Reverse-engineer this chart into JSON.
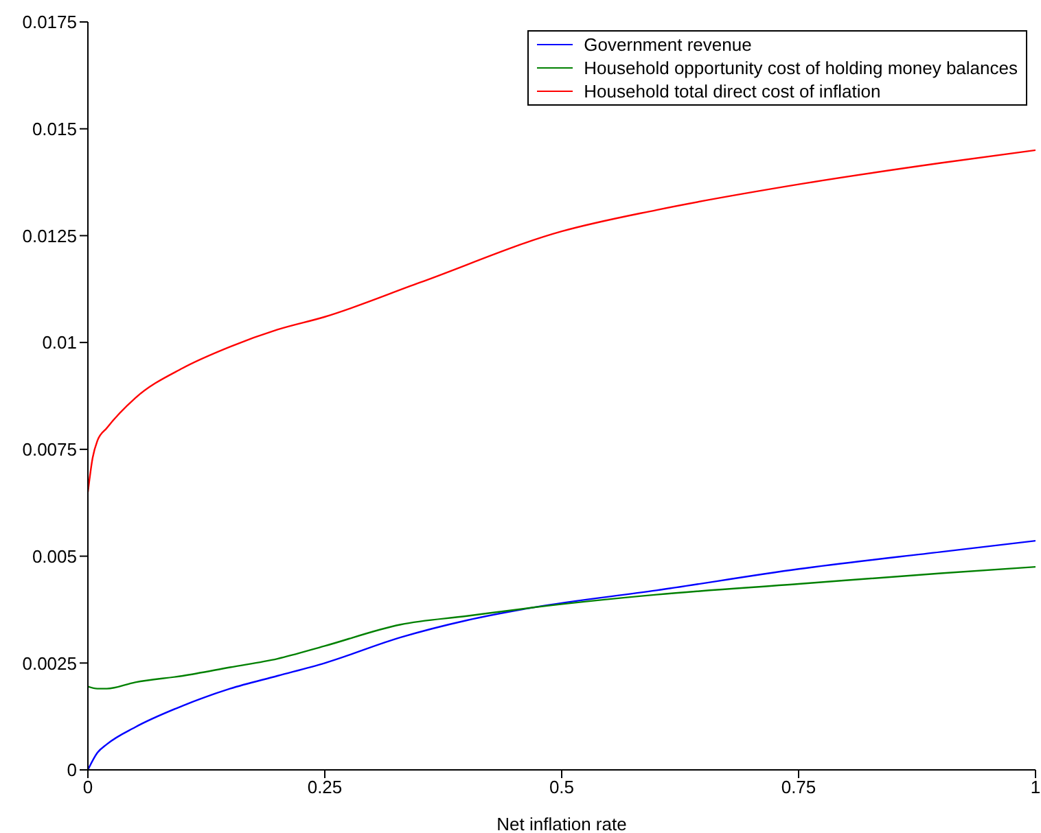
{
  "chart_data": {
    "type": "line",
    "xlabel": "Net inflation rate",
    "xlim": [
      0,
      1
    ],
    "xticks": [
      0,
      0.25,
      0.5,
      0.75,
      1
    ],
    "ylim": [
      0,
      0.0175
    ],
    "yticks": [
      0,
      0.0025,
      0.005,
      0.0075,
      0.01,
      0.0125,
      0.015,
      0.0175
    ],
    "grid": false,
    "legend": "top right",
    "marker": "none",
    "line_style": "solid",
    "series": [
      {
        "name": "Government revenue",
        "color": "#0000ff",
        "x": [
          0,
          0.01,
          0.02,
          0.05,
          0.1,
          0.15,
          0.2,
          0.25,
          0.33,
          0.4,
          0.47,
          0.6,
          0.75,
          0.9,
          1
        ],
        "values": [
          0,
          0.0004,
          0.0006,
          0.001,
          0.0015,
          0.0019,
          0.0022,
          0.0025,
          0.0031,
          0.0035,
          0.0038,
          0.0042,
          0.0047,
          0.0051,
          0.00536
        ]
      },
      {
        "name": "Household opportunity cost of holding money balances",
        "color": "#008000",
        "x": [
          0,
          0.01,
          0.02,
          0.05,
          0.1,
          0.15,
          0.2,
          0.25,
          0.33,
          0.4,
          0.47,
          0.6,
          0.75,
          0.9,
          1
        ],
        "values": [
          0.00195,
          0.0019,
          0.0019,
          0.00205,
          0.0022,
          0.0024,
          0.0026,
          0.0029,
          0.0034,
          0.0036,
          0.0038,
          0.0041,
          0.00435,
          0.0046,
          0.00475
        ]
      },
      {
        "name": "Household total direct cost of inflation",
        "color": "#ff0000",
        "x": [
          0,
          0.005,
          0.01,
          0.02,
          0.05,
          0.1,
          0.15,
          0.2,
          0.25,
          0.35,
          0.5,
          0.6,
          0.75,
          0.9,
          1
        ],
        "values": [
          0.0065,
          0.0073,
          0.0077,
          0.008,
          0.0087,
          0.0094,
          0.0099,
          0.0103,
          0.0106,
          0.0114,
          0.0126,
          0.0131,
          0.0137,
          0.0142,
          0.0145
        ]
      }
    ]
  }
}
